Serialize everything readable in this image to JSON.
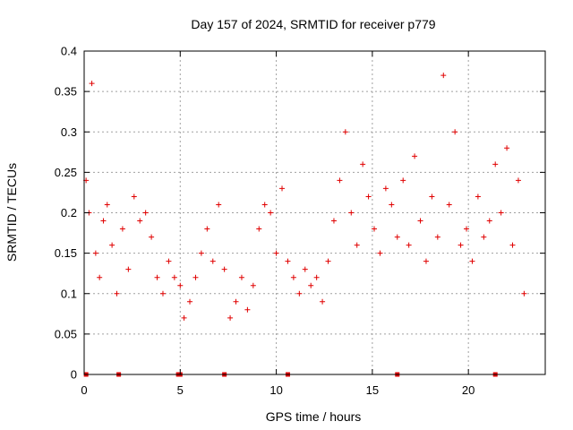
{
  "chart_data": {
    "type": "scatter",
    "title": "Day 157 of 2024, SRMTID for receiver p779",
    "xlabel": "GPS time / hours",
    "ylabel": "SRMTID / TECUs",
    "xlim": [
      0,
      24
    ],
    "ylim": [
      0,
      0.4
    ],
    "xticks": [
      0,
      5,
      10,
      15,
      20
    ],
    "xtick_labels": [
      "0",
      "5",
      "10",
      "15",
      "20"
    ],
    "yticks": [
      0,
      0.05,
      0.1,
      0.15,
      0.2,
      0.25,
      0.3,
      0.35,
      0.4
    ],
    "ytick_labels": [
      "0",
      "0.05",
      "0.1",
      "0.15",
      "0.2",
      "0.25",
      "0.3",
      "0.35",
      "0.4"
    ],
    "grid": true,
    "marker": "+",
    "color": "#e00000",
    "series": [
      {
        "name": "SRMTID",
        "x": [
          0.1,
          0.25,
          0.4,
          0.6,
          0.8,
          1.0,
          1.2,
          1.45,
          1.7,
          2.0,
          2.3,
          2.6,
          2.9,
          3.2,
          3.5,
          3.8,
          4.1,
          4.4,
          4.7,
          5.0,
          5.2,
          5.5,
          5.8,
          6.1,
          6.4,
          6.7,
          7.0,
          7.3,
          7.6,
          7.9,
          8.2,
          8.5,
          8.8,
          9.1,
          9.4,
          9.7,
          10.0,
          10.3,
          10.6,
          10.9,
          11.2,
          11.5,
          11.8,
          12.1,
          12.4,
          12.7,
          13.0,
          13.3,
          13.6,
          13.9,
          14.2,
          14.5,
          14.8,
          15.1,
          15.4,
          15.7,
          16.0,
          16.3,
          16.6,
          16.9,
          17.2,
          17.5,
          17.8,
          18.1,
          18.4,
          18.7,
          19.0,
          19.3,
          19.6,
          19.9,
          20.2,
          20.5,
          20.8,
          21.1,
          21.4,
          21.7,
          22.0,
          22.3,
          22.6,
          22.9
        ],
        "y": [
          0.24,
          0.2,
          0.36,
          0.15,
          0.12,
          0.19,
          0.21,
          0.16,
          0.1,
          0.18,
          0.13,
          0.22,
          0.19,
          0.2,
          0.17,
          0.12,
          0.1,
          0.14,
          0.12,
          0.11,
          0.07,
          0.09,
          0.12,
          0.15,
          0.18,
          0.14,
          0.21,
          0.13,
          0.07,
          0.09,
          0.12,
          0.08,
          0.11,
          0.18,
          0.21,
          0.2,
          0.15,
          0.23,
          0.14,
          0.12,
          0.1,
          0.13,
          0.11,
          0.12,
          0.09,
          0.14,
          0.19,
          0.24,
          0.3,
          0.2,
          0.16,
          0.26,
          0.22,
          0.18,
          0.15,
          0.23,
          0.21,
          0.17,
          0.24,
          0.16,
          0.27,
          0.19,
          0.14,
          0.22,
          0.17,
          0.37,
          0.21,
          0.3,
          0.16,
          0.18,
          0.14,
          0.22,
          0.17,
          0.19,
          0.26,
          0.2,
          0.28,
          0.16,
          0.24,
          0.1
        ]
      }
    ],
    "zero_markers_x": [
      0.1,
      1.8,
      4.9,
      5.0,
      7.3,
      10.6,
      16.3,
      21.4
    ]
  }
}
